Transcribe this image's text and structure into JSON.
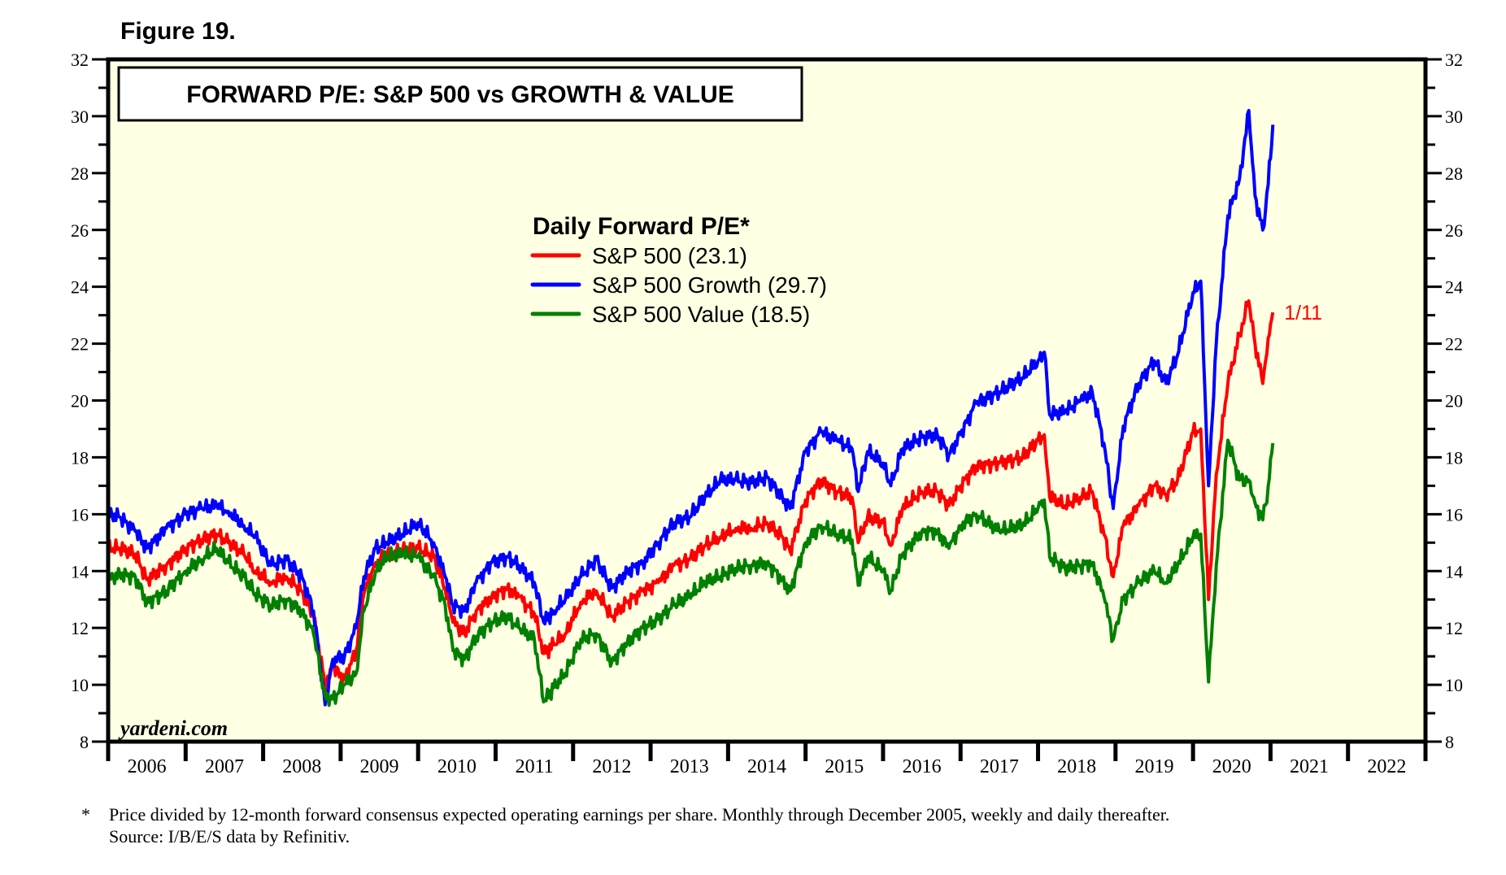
{
  "figure_label": "Figure 19.",
  "footnote": {
    "marker": "*",
    "line1": "Price divided by 12-month forward consensus expected operating earnings per share. Monthly through December 2005, weekly and daily thereafter.",
    "line2": "Source: I/B/E/S data by Refinitiv."
  },
  "chart_data": {
    "type": "line",
    "title": "FORWARD P/E: S&P 500 vs GROWTH & VALUE",
    "legend_title": "Daily Forward P/E*",
    "legend_position": "top-center",
    "watermark": "yardeni.com",
    "end_label": "1/11",
    "end_label_color": "#ff0000",
    "xlabel": "",
    "ylabel": "",
    "xlim": [
      2006,
      2023
    ],
    "ylim": [
      8,
      32
    ],
    "y_ticks": [
      8,
      10,
      12,
      14,
      16,
      18,
      20,
      22,
      24,
      26,
      28,
      30,
      32
    ],
    "y_minor_step": 1,
    "x_tick_labels": [
      "2006",
      "2007",
      "2008",
      "2009",
      "2010",
      "2011",
      "2012",
      "2013",
      "2014",
      "2015",
      "2016",
      "2017",
      "2018",
      "2019",
      "2020",
      "2021",
      "2022"
    ],
    "background": "#ffffe4",
    "grid": false,
    "series": [
      {
        "name": "S&P 500 (23.1)",
        "color": "#ff0000",
        "x": [
          2006.0,
          2006.15,
          2006.35,
          2006.5,
          2006.75,
          2007.0,
          2007.2,
          2007.4,
          2007.55,
          2007.75,
          2007.9,
          2008.1,
          2008.3,
          2008.5,
          2008.65,
          2008.8,
          2008.9,
          2009.05,
          2009.2,
          2009.3,
          2009.45,
          2009.6,
          2009.8,
          2010.0,
          2010.2,
          2010.35,
          2010.45,
          2010.6,
          2010.75,
          2010.95,
          2011.15,
          2011.3,
          2011.5,
          2011.62,
          2011.75,
          2011.9,
          2012.1,
          2012.3,
          2012.5,
          2012.7,
          2012.9,
          2013.1,
          2013.3,
          2013.5,
          2013.7,
          2013.9,
          2014.1,
          2014.3,
          2014.5,
          2014.7,
          2014.8,
          2015.0,
          2015.2,
          2015.4,
          2015.6,
          2015.68,
          2015.8,
          2016.0,
          2016.1,
          2016.25,
          2016.5,
          2016.7,
          2016.85,
          2017.0,
          2017.2,
          2017.5,
          2017.8,
          2018.0,
          2018.08,
          2018.15,
          2018.35,
          2018.55,
          2018.7,
          2018.85,
          2018.97,
          2019.1,
          2019.3,
          2019.5,
          2019.65,
          2019.8,
          2020.0,
          2020.1,
          2020.2,
          2020.3,
          2020.45,
          2020.6,
          2020.72,
          2020.8,
          2020.9,
          2020.97,
          2021.03
        ],
        "values": [
          14.8,
          14.8,
          14.6,
          13.7,
          14.2,
          14.8,
          15.1,
          15.3,
          15.0,
          14.6,
          14.0,
          13.6,
          13.8,
          13.3,
          12.4,
          10.0,
          10.6,
          10.2,
          11.2,
          13.2,
          14.3,
          14.6,
          14.7,
          14.8,
          14.5,
          13.4,
          12.2,
          11.8,
          12.6,
          13.1,
          13.4,
          13.1,
          12.5,
          11.1,
          11.4,
          11.8,
          12.9,
          13.3,
          12.4,
          12.9,
          13.3,
          13.6,
          14.2,
          14.4,
          14.9,
          15.2,
          15.5,
          15.5,
          15.7,
          15.2,
          14.7,
          16.5,
          17.2,
          16.8,
          16.6,
          15.0,
          15.9,
          15.7,
          14.9,
          16.2,
          16.8,
          16.8,
          16.3,
          17.0,
          17.7,
          17.8,
          18.0,
          18.6,
          18.8,
          16.6,
          16.3,
          16.6,
          16.8,
          15.3,
          13.8,
          15.6,
          16.3,
          17.0,
          16.7,
          17.2,
          18.9,
          19.0,
          13.0,
          17.4,
          20.6,
          22.3,
          23.5,
          22.0,
          20.6,
          22.2,
          23.1
        ]
      },
      {
        "name": "S&P 500 Growth (29.7)",
        "color": "#0000ff",
        "x": [
          2006.0,
          2006.15,
          2006.35,
          2006.5,
          2006.75,
          2007.0,
          2007.2,
          2007.4,
          2007.55,
          2007.75,
          2007.9,
          2008.1,
          2008.3,
          2008.5,
          2008.65,
          2008.8,
          2008.9,
          2009.05,
          2009.2,
          2009.3,
          2009.45,
          2009.6,
          2009.8,
          2010.0,
          2010.2,
          2010.35,
          2010.45,
          2010.6,
          2010.75,
          2010.95,
          2011.15,
          2011.3,
          2011.5,
          2011.62,
          2011.75,
          2011.9,
          2012.1,
          2012.3,
          2012.5,
          2012.7,
          2012.9,
          2013.1,
          2013.3,
          2013.5,
          2013.7,
          2013.9,
          2014.1,
          2014.3,
          2014.5,
          2014.7,
          2014.8,
          2015.0,
          2015.2,
          2015.4,
          2015.6,
          2015.68,
          2015.8,
          2016.0,
          2016.1,
          2016.25,
          2016.5,
          2016.7,
          2016.85,
          2017.0,
          2017.2,
          2017.5,
          2017.8,
          2018.0,
          2018.08,
          2018.15,
          2018.35,
          2018.55,
          2018.7,
          2018.85,
          2018.97,
          2019.1,
          2019.3,
          2019.5,
          2019.65,
          2019.8,
          2020.0,
          2020.1,
          2020.2,
          2020.3,
          2020.45,
          2020.6,
          2020.72,
          2020.8,
          2020.9,
          2020.97,
          2021.03
        ],
        "values": [
          16.0,
          15.9,
          15.4,
          14.8,
          15.5,
          16.0,
          16.2,
          16.3,
          16.1,
          15.6,
          15.2,
          14.2,
          14.4,
          13.8,
          12.6,
          9.3,
          10.9,
          11.0,
          12.0,
          13.8,
          14.8,
          15.0,
          15.3,
          15.7,
          15.0,
          13.8,
          12.8,
          12.6,
          13.6,
          14.3,
          14.5,
          14.2,
          13.6,
          12.2,
          12.6,
          13.0,
          13.8,
          14.4,
          13.4,
          14.0,
          14.3,
          15.0,
          15.7,
          15.9,
          16.6,
          17.2,
          17.2,
          17.1,
          17.3,
          16.6,
          16.2,
          18.2,
          18.9,
          18.6,
          18.3,
          16.8,
          18.2,
          17.8,
          17.0,
          18.3,
          18.7,
          18.8,
          18.1,
          18.8,
          19.9,
          20.3,
          20.8,
          21.4,
          21.7,
          19.5,
          19.6,
          20.0,
          20.3,
          18.5,
          16.2,
          19.1,
          20.6,
          21.4,
          20.6,
          21.6,
          23.8,
          24.2,
          17.0,
          22.0,
          26.5,
          27.8,
          30.2,
          27.2,
          26.0,
          27.6,
          29.7
        ]
      },
      {
        "name": "S&P 500 Value (18.5)",
        "color": "#008000",
        "x": [
          2006.0,
          2006.15,
          2006.35,
          2006.5,
          2006.75,
          2007.0,
          2007.2,
          2007.4,
          2007.55,
          2007.75,
          2007.9,
          2008.1,
          2008.3,
          2008.5,
          2008.65,
          2008.8,
          2008.9,
          2009.05,
          2009.2,
          2009.3,
          2009.45,
          2009.6,
          2009.8,
          2010.0,
          2010.2,
          2010.35,
          2010.45,
          2010.6,
          2010.75,
          2010.95,
          2011.15,
          2011.3,
          2011.5,
          2011.62,
          2011.75,
          2011.9,
          2012.1,
          2012.3,
          2012.5,
          2012.7,
          2012.9,
          2013.1,
          2013.3,
          2013.5,
          2013.7,
          2013.9,
          2014.1,
          2014.3,
          2014.5,
          2014.7,
          2014.8,
          2015.0,
          2015.2,
          2015.4,
          2015.6,
          2015.68,
          2015.8,
          2016.0,
          2016.1,
          2016.25,
          2016.5,
          2016.7,
          2016.85,
          2017.0,
          2017.2,
          2017.5,
          2017.8,
          2018.0,
          2018.08,
          2018.15,
          2018.35,
          2018.55,
          2018.7,
          2018.85,
          2018.97,
          2019.1,
          2019.3,
          2019.5,
          2019.65,
          2019.8,
          2020.0,
          2020.1,
          2020.2,
          2020.3,
          2020.45,
          2020.6,
          2020.72,
          2020.8,
          2020.9,
          2020.97,
          2021.03
        ],
        "values": [
          13.7,
          13.9,
          13.8,
          12.9,
          13.3,
          14.0,
          14.4,
          14.8,
          14.3,
          13.8,
          13.2,
          12.8,
          13.0,
          12.6,
          11.8,
          9.6,
          9.5,
          10.0,
          10.4,
          12.6,
          14.0,
          14.5,
          14.6,
          14.5,
          13.8,
          12.8,
          11.2,
          10.9,
          11.7,
          12.2,
          12.4,
          12.0,
          11.6,
          9.4,
          9.9,
          10.4,
          11.6,
          11.8,
          10.8,
          11.5,
          12.0,
          12.3,
          12.8,
          13.1,
          13.6,
          13.8,
          14.1,
          14.2,
          14.3,
          13.7,
          13.3,
          15.0,
          15.6,
          15.3,
          15.1,
          13.5,
          14.5,
          14.0,
          13.3,
          14.6,
          15.4,
          15.4,
          14.8,
          15.6,
          16.0,
          15.4,
          15.6,
          16.2,
          16.5,
          14.5,
          14.1,
          14.2,
          14.3,
          13.1,
          11.6,
          13.0,
          13.6,
          14.0,
          13.6,
          14.2,
          15.2,
          15.3,
          10.1,
          14.2,
          18.6,
          17.2,
          17.2,
          16.4,
          15.8,
          17.0,
          18.5
        ]
      }
    ]
  }
}
